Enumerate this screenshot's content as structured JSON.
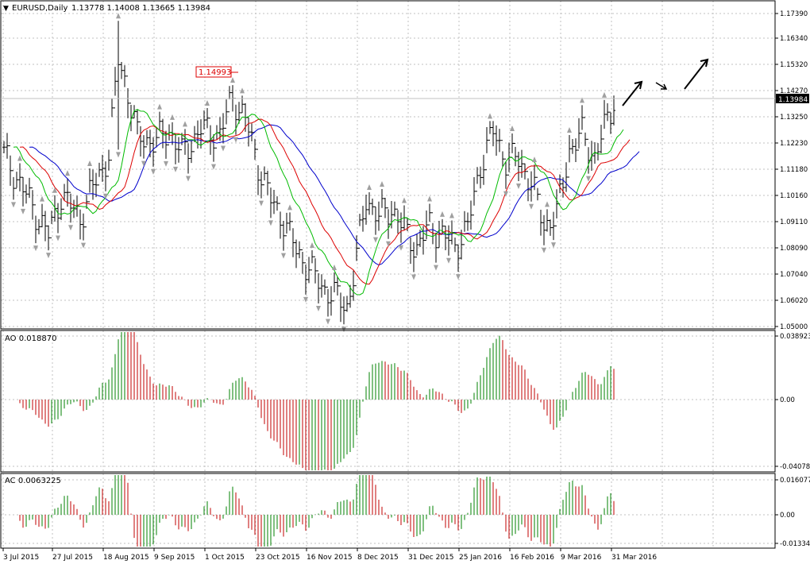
{
  "window": {
    "symbol_label": "EURUSD,Daily",
    "ohlc_label": "1.13778 1.14008 1.13665 1.13984"
  },
  "colors": {
    "background": "#ffffff",
    "grid": "#c0c0c0",
    "bar": "#000000",
    "ao_up": "#008000",
    "ao_down": "#c00000",
    "alligator_jaw": "#0000cc",
    "alligator_teeth": "#dd0000",
    "alligator_lips": "#00bb00",
    "fractal": "#a0a0a0",
    "marker_label": "#dd0000",
    "current_price_bg": "#000000",
    "current_price_text": "#ffffff"
  },
  "price_panel": {
    "y_ticks": [
      "1.17390",
      "1.16340",
      "1.15320",
      "1.14270",
      "1.13250",
      "1.12230",
      "1.11180",
      "1.10160",
      "1.09110",
      "1.08090",
      "1.07040",
      "1.06020",
      "1.05000"
    ],
    "current_price_label": "1.13984",
    "marker_label": "1.14993",
    "arrows": [
      "up-right-arrow",
      "down-right-arrow",
      "up-right-arrow"
    ]
  },
  "ao_panel": {
    "title": "AO 0.018870",
    "y_ticks": [
      "0.038923",
      "0.00",
      "-0.040788"
    ]
  },
  "ac_panel": {
    "title": "AC 0.0063225",
    "y_ticks": [
      "0.016077",
      "0.00",
      "-0.013346"
    ]
  },
  "x_ticks": [
    "3 Jul 2015",
    "27 Jul 2015",
    "18 Aug 2015",
    "9 Sep 2015",
    "1 Oct 2015",
    "23 Oct 2015",
    "16 Nov 2015",
    "8 Dec 2015",
    "31 Dec 2015",
    "25 Jan 2016",
    "16 Feb 2016",
    "9 Mar 2016",
    "31 Mar 2016"
  ],
  "chart_data": [
    {
      "type": "ohlc",
      "name": "EURUSD,Daily",
      "x": [
        "3 Jul 2015",
        "27 Jul 2015",
        "18 Aug 2015",
        "9 Sep 2015",
        "1 Oct 2015",
        "23 Oct 2015",
        "16 Nov 2015",
        "8 Dec 2015",
        "31 Dec 2015",
        "25 Jan 2016",
        "16 Feb 2016",
        "9 Mar 2016",
        "31 Mar 2016"
      ],
      "close": [
        1.108,
        1.097,
        1.15,
        1.122,
        1.126,
        1.103,
        1.062,
        1.095,
        1.086,
        1.086,
        1.116,
        1.101,
        1.139
      ],
      "high": [
        1.119,
        1.103,
        1.171,
        1.132,
        1.145,
        1.114,
        1.078,
        1.104,
        1.093,
        1.092,
        1.136,
        1.113,
        1.14
      ],
      "low": [
        1.091,
        1.085,
        1.112,
        1.109,
        1.116,
        1.097,
        1.051,
        1.078,
        1.072,
        1.079,
        1.107,
        1.083,
        1.128
      ],
      "last": {
        "open": 1.13778,
        "high": 1.14008,
        "low": 1.13665,
        "close": 1.13984
      },
      "marked_level": 1.14993,
      "ylim": [
        1.05,
        1.1739
      ]
    },
    {
      "type": "bar",
      "name": "AO",
      "x": [
        "3 Jul 2015",
        "27 Jul 2015",
        "18 Aug 2015",
        "9 Sep 2015",
        "1 Oct 2015",
        "23 Oct 2015",
        "16 Nov 2015",
        "8 Dec 2015",
        "31 Dec 2015",
        "25 Jan 2016",
        "16 Feb 2016",
        "9 Mar 2016",
        "31 Mar 2016"
      ],
      "values": [
        -0.004,
        -0.01,
        0.037,
        0.009,
        0.01,
        -0.01,
        -0.038,
        0.014,
        0.001,
        -0.004,
        0.032,
        -0.011,
        0.01887
      ],
      "ylim": [
        -0.040788,
        0.038923
      ]
    },
    {
      "type": "bar",
      "name": "AC",
      "x": [
        "3 Jul 2015",
        "27 Jul 2015",
        "18 Aug 2015",
        "9 Sep 2015",
        "1 Oct 2015",
        "23 Oct 2015",
        "16 Nov 2015",
        "8 Dec 2015",
        "31 Dec 2015",
        "25 Jan 2016",
        "16 Feb 2016",
        "9 Mar 2016",
        "31 Mar 2016"
      ],
      "values": [
        -0.003,
        0.009,
        0.011,
        -0.006,
        0.008,
        -0.012,
        -0.004,
        0.015,
        -0.005,
        -0.001,
        0.013,
        -0.008,
        0.0063225
      ],
      "ylim": [
        -0.013346,
        0.016077
      ]
    }
  ]
}
